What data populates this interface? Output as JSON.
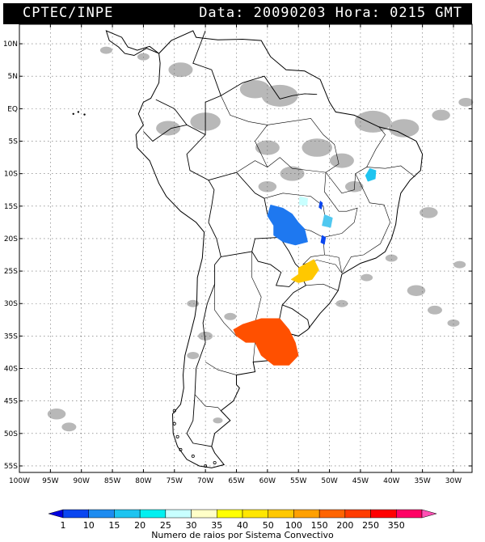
{
  "header": {
    "left": "CPTEC/INPE",
    "right": "Data: 20090203 Hora: 0215 GMT"
  },
  "axes": {
    "lat_labels": [
      "10N",
      "5N",
      "EQ",
      "5S",
      "10S",
      "15S",
      "20S",
      "25S",
      "30S",
      "35S",
      "40S",
      "45S",
      "50S",
      "55S"
    ],
    "lat_values": [
      10,
      5,
      0,
      -5,
      -10,
      -15,
      -20,
      -25,
      -30,
      -35,
      -40,
      -45,
      -50,
      -55
    ],
    "lon_labels": [
      "100W",
      "95W",
      "90W",
      "85W",
      "80W",
      "75W",
      "70W",
      "65W",
      "60W",
      "55W",
      "50W",
      "45W",
      "40W",
      "35W",
      "30W"
    ],
    "lon_values": [
      -100,
      -95,
      -90,
      -85,
      -80,
      -75,
      -70,
      -65,
      -60,
      -55,
      -50,
      -45,
      -40,
      -35,
      -30
    ],
    "lon_range": [
      -100,
      -27
    ],
    "lat_range": [
      -56,
      13
    ]
  },
  "legend": {
    "labels": [
      "1",
      "10",
      "15",
      "20",
      "25",
      "30",
      "35",
      "40",
      "50",
      "100",
      "150",
      "200",
      "250",
      "350"
    ],
    "colors": [
      "#0000e0",
      "#0a46f0",
      "#1e8cf0",
      "#1ec4f0",
      "#00f0f0",
      "#c8ffff",
      "#ffffc8",
      "#ffff00",
      "#ffe600",
      "#ffc800",
      "#ffa000",
      "#ff6400",
      "#ff3c00",
      "#ff0000",
      "#ff0064",
      "#ff50b4"
    ],
    "caption": "Numero de raios por Sistema Convectivo"
  },
  "systems": [
    {
      "color": "#ff5000",
      "points": [
        [
          -61,
          -32.3
        ],
        [
          -58,
          -32.3
        ],
        [
          -56.5,
          -34
        ],
        [
          -55.5,
          -36
        ],
        [
          -55,
          -38
        ],
        [
          -56.5,
          -39.5
        ],
        [
          -59,
          -39.5
        ],
        [
          -61,
          -38
        ],
        [
          -62,
          -36
        ],
        [
          -63.5,
          -36
        ],
        [
          -65,
          -35
        ],
        [
          -65.5,
          -34
        ],
        [
          -64,
          -33.2
        ]
      ]
    },
    {
      "color": "#ffc800",
      "points": [
        [
          -55,
          -24.5
        ],
        [
          -52.5,
          -23.2
        ],
        [
          -51.7,
          -24.8
        ],
        [
          -52.8,
          -26.3
        ],
        [
          -55,
          -26.8
        ],
        [
          -56.2,
          -26.3
        ],
        [
          -55,
          -25.5
        ]
      ]
    },
    {
      "color": "#1e78f0",
      "points": [
        [
          -59.5,
          -14.8
        ],
        [
          -57.5,
          -15.3
        ],
        [
          -56,
          -16.2
        ],
        [
          -55,
          -17.5
        ],
        [
          -54,
          -18.5
        ],
        [
          -53.5,
          -20.5
        ],
        [
          -55.5,
          -21
        ],
        [
          -57.5,
          -20.5
        ],
        [
          -59,
          -19.5
        ],
        [
          -59,
          -18
        ],
        [
          -60,
          -16.5
        ]
      ]
    },
    {
      "color": "#1ec4f0",
      "points": [
        [
          -43.5,
          -9.2
        ],
        [
          -42.5,
          -9.5
        ],
        [
          -42.6,
          -10.8
        ],
        [
          -43.8,
          -11.2
        ],
        [
          -44.2,
          -10.3
        ]
      ]
    },
    {
      "color": "#50c8f0",
      "points": [
        [
          -50.8,
          -16.3
        ],
        [
          -49.5,
          -16.8
        ],
        [
          -49.8,
          -18.3
        ],
        [
          -51.2,
          -18
        ]
      ]
    },
    {
      "color": "#c8ffff",
      "points": [
        [
          -54.8,
          -13.5
        ],
        [
          -53.5,
          -13.8
        ],
        [
          -53.6,
          -14.9
        ],
        [
          -54.9,
          -14.8
        ]
      ]
    },
    {
      "color": "#0a46f0",
      "points": [
        [
          -51.5,
          -14.2
        ],
        [
          -51.1,
          -14.5
        ],
        [
          -51.3,
          -15.5
        ],
        [
          -51.7,
          -15.2
        ]
      ]
    },
    {
      "color": "#0a46f0",
      "points": [
        [
          -51.2,
          -19.5
        ],
        [
          -50.6,
          -19.8
        ],
        [
          -50.8,
          -20.9
        ],
        [
          -51.4,
          -20.6
        ]
      ]
    }
  ]
}
